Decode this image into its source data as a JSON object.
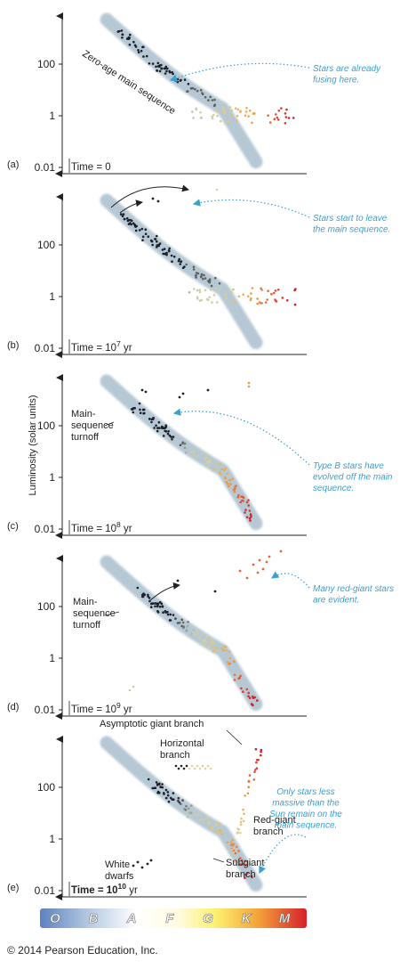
{
  "figure": {
    "y_axis_label": "Luminosity (solar units)",
    "copyright": "© 2014 Pearson Education, Inc.",
    "spectral_classes": [
      "O",
      "B",
      "A",
      "F",
      "G",
      "K",
      "M"
    ],
    "spectral_colors": [
      "#6f8fc4",
      "#b9cbe3",
      "#ffffff",
      "#fffde8",
      "#fdf38a",
      "#f6a33a",
      "#d81f2d"
    ],
    "panels": [
      {
        "letter": "(a)",
        "time_prefix": "Time = 0",
        "time_exponent": "",
        "time_unit": "",
        "ticks": [
          "100",
          "1",
          "0.01"
        ],
        "note": [
          "Stars are already",
          "fusing here."
        ],
        "labels": {
          "zams": "Zero-age main sequence"
        }
      },
      {
        "letter": "(b)",
        "time_prefix": "Time = 10",
        "time_exponent": "7",
        "time_unit": " yr",
        "ticks": [
          "100",
          "1",
          "0.01"
        ],
        "note": [
          "Stars start to leave",
          "the main sequence."
        ]
      },
      {
        "letter": "(c)",
        "time_prefix": "Time = 10",
        "time_exponent": "8",
        "time_unit": " yr",
        "ticks": [
          "100",
          "1",
          "0.01"
        ],
        "note": [
          "Type B stars have",
          "evolved off the main",
          "sequence."
        ],
        "labels": {
          "turnoff": [
            "Main-",
            "sequence",
            "turnoff"
          ]
        }
      },
      {
        "letter": "(d)",
        "time_prefix": "Time = 10",
        "time_exponent": "9",
        "time_unit": " yr",
        "ticks": [
          "100",
          "1",
          "0.01"
        ],
        "note": [
          "Many red-giant stars",
          "are evident."
        ],
        "labels": {
          "turnoff": [
            "Main-",
            "sequence",
            "turnoff"
          ]
        }
      },
      {
        "letter": "(e)",
        "time_prefix": "Time = 10",
        "time_exponent": "10",
        "time_unit": " yr",
        "ticks": [
          "100",
          "1",
          "0.01"
        ],
        "note": [
          "Only stars less",
          "massive than the",
          "Sun remain on the",
          "main sequence."
        ],
        "labels": {
          "agb": "Asymptotic giant branch",
          "horizontal": [
            "Horizontal",
            "branch"
          ],
          "red_giant": [
            "Red-giant",
            "branch"
          ],
          "subgiant": [
            "Subgiant",
            "branch"
          ],
          "white_dwarfs": [
            "White",
            "dwarfs"
          ]
        }
      }
    ]
  }
}
